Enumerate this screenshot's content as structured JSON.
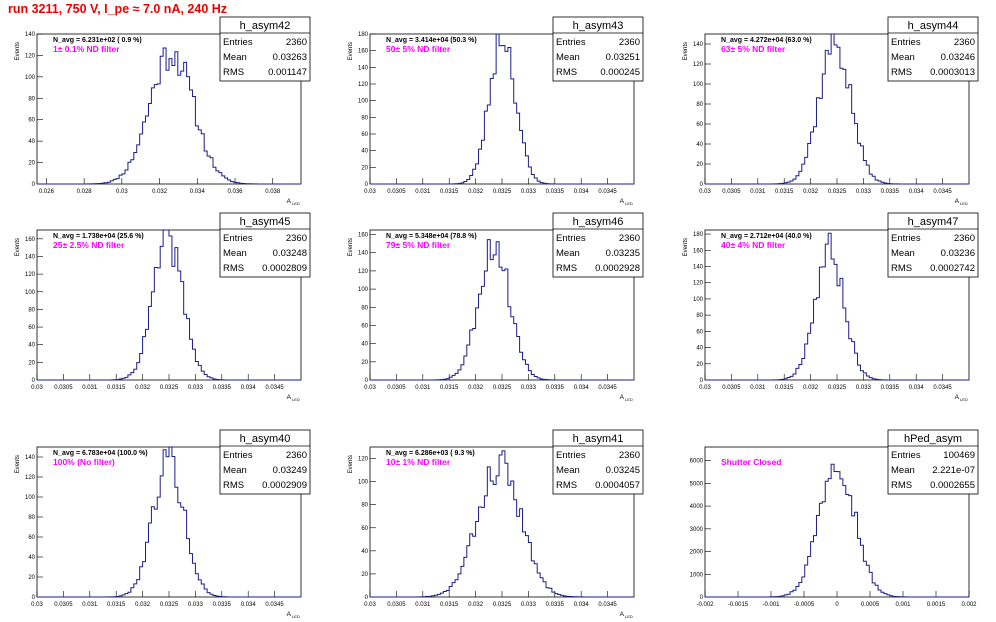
{
  "page": {
    "title": "run 3211,   750 V, I_pe ≈ 7.0 nA, 240 Hz"
  },
  "colors": {
    "histogram_line": "#1c1c8c",
    "annotation": "#ff00ff",
    "title": "#ee0000",
    "axis": "#000000"
  },
  "chart_data": [
    {
      "type": "histogram",
      "name": "h_asym42",
      "ylabel": "Events",
      "xlabel": "A",
      "xlabel_sub": "LED",
      "n_avg": "N_avg = 6.231e+02 ( 0.9 %)",
      "annotation": "1± 0.1% ND filter",
      "stats": {
        "entries": "2360",
        "mean": "0.03263",
        "rms": "0.001147"
      },
      "xlim": [
        0.0255,
        0.0395
      ],
      "ylim": [
        0,
        140
      ],
      "xticks": [
        "0.026",
        "0.028",
        "0.03",
        "0.032",
        "0.034",
        "0.036",
        "0.038"
      ],
      "xtick_values": [
        0.026,
        0.028,
        0.03,
        0.032,
        0.034,
        0.036,
        0.038
      ],
      "yticks": [
        "0",
        "20",
        "40",
        "60",
        "80",
        "100",
        "120",
        "140"
      ],
      "ytick_values": [
        0,
        20,
        40,
        60,
        80,
        100,
        120,
        140
      ],
      "mean_value": 0.03263,
      "rms_value": 0.001147,
      "peak": 124,
      "seed": 11
    },
    {
      "type": "histogram",
      "name": "h_asym43",
      "ylabel": "Events",
      "xlabel": "A",
      "xlabel_sub": "LED",
      "n_avg": "N_avg = 3.414e+04 (50.3 %)",
      "annotation": "50± 5% ND filter",
      "stats": {
        "entries": "2360",
        "mean": "0.03251",
        "rms": "0.000245"
      },
      "xlim": [
        0.03,
        0.035
      ],
      "ylim": [
        0,
        180
      ],
      "xticks": [
        "0.03",
        "0.0305",
        "0.031",
        "0.0315",
        "0.032",
        "0.0325",
        "0.033",
        "0.0335",
        "0.034",
        "0.0345"
      ],
      "xtick_values": [
        0.03,
        0.0305,
        0.031,
        0.0315,
        0.032,
        0.0325,
        0.033,
        0.0335,
        0.034,
        0.0345
      ],
      "yticks": [
        "0",
        "20",
        "40",
        "60",
        "80",
        "100",
        "120",
        "140",
        "160",
        "180"
      ],
      "ytick_values": [
        0,
        20,
        40,
        60,
        80,
        100,
        120,
        140,
        160,
        180
      ],
      "mean_value": 0.03251,
      "rms_value": 0.000245,
      "peak": 180,
      "seed": 23
    },
    {
      "type": "histogram",
      "name": "h_asym44",
      "ylabel": "Events",
      "xlabel": "A",
      "xlabel_sub": "LED",
      "n_avg": "N_avg = 4.272e+04 (63.0 %)",
      "annotation": "63± 5% ND filter",
      "stats": {
        "entries": "2360",
        "mean": "0.03246",
        "rms": "0.0003013"
      },
      "xlim": [
        0.03,
        0.035
      ],
      "ylim": [
        0,
        150
      ],
      "xticks": [
        "0.03",
        "0.0305",
        "0.031",
        "0.0315",
        "0.032",
        "0.0325",
        "0.033",
        "0.0335",
        "0.034",
        "0.0345"
      ],
      "xtick_values": [
        0.03,
        0.0305,
        0.031,
        0.0315,
        0.032,
        0.0325,
        0.033,
        0.0335,
        0.034,
        0.0345
      ],
      "yticks": [
        "0",
        "20",
        "40",
        "60",
        "80",
        "100",
        "120",
        "140"
      ],
      "ytick_values": [
        0,
        20,
        40,
        60,
        80,
        100,
        120,
        140
      ],
      "mean_value": 0.03246,
      "rms_value": 0.0003013,
      "peak": 142,
      "seed": 37
    },
    {
      "type": "histogram",
      "name": "h_asym45",
      "ylabel": "Events",
      "xlabel": "A",
      "xlabel_sub": "LED",
      "n_avg": "N_avg = 1.738e+04 (25.6 %)",
      "annotation": "25± 2.5% ND filter",
      "stats": {
        "entries": "2360",
        "mean": "0.03248",
        "rms": "0.0002809"
      },
      "xlim": [
        0.03,
        0.035
      ],
      "ylim": [
        0,
        170
      ],
      "xticks": [
        "0.03",
        "0.0305",
        "0.031",
        "0.0315",
        "0.032",
        "0.0325",
        "0.033",
        "0.0335",
        "0.034",
        "0.0345"
      ],
      "xtick_values": [
        0.03,
        0.0305,
        0.031,
        0.0315,
        0.032,
        0.0325,
        0.033,
        0.0335,
        0.034,
        0.0345
      ],
      "yticks": [
        "0",
        "20",
        "40",
        "60",
        "80",
        "100",
        "120",
        "140",
        "160"
      ],
      "ytick_values": [
        0,
        20,
        40,
        60,
        80,
        100,
        120,
        140,
        160
      ],
      "mean_value": 0.03248,
      "rms_value": 0.0002809,
      "peak": 160,
      "seed": 41
    },
    {
      "type": "histogram",
      "name": "h_asym46",
      "ylabel": "Events",
      "xlabel": "A",
      "xlabel_sub": "LED",
      "n_avg": "N_avg = 5.348e+04 (78.8 %)",
      "annotation": "79± 5% ND filter",
      "stats": {
        "entries": "2360",
        "mean": "0.03235",
        "rms": "0.0002928"
      },
      "xlim": [
        0.03,
        0.035
      ],
      "ylim": [
        0,
        165
      ],
      "xticks": [
        "0.03",
        "0.0305",
        "0.031",
        "0.0315",
        "0.032",
        "0.0325",
        "0.033",
        "0.0335",
        "0.034",
        "0.0345"
      ],
      "xtick_values": [
        0.03,
        0.0305,
        0.031,
        0.0315,
        0.032,
        0.0325,
        0.033,
        0.0335,
        0.034,
        0.0345
      ],
      "yticks": [
        "0",
        "20",
        "40",
        "60",
        "80",
        "100",
        "120",
        "140",
        "160"
      ],
      "ytick_values": [
        0,
        20,
        40,
        60,
        80,
        100,
        120,
        140,
        160
      ],
      "mean_value": 0.03235,
      "rms_value": 0.0002928,
      "peak": 150,
      "seed": 53
    },
    {
      "type": "histogram",
      "name": "h_asym47",
      "ylabel": "Events",
      "xlabel": "A",
      "xlabel_sub": "LED",
      "n_avg": "N_avg = 2.712e+04 (40.0 %)",
      "annotation": "40± 4% ND filter",
      "stats": {
        "entries": "2360",
        "mean": "0.03236",
        "rms": "0.0002742"
      },
      "xlim": [
        0.03,
        0.035
      ],
      "ylim": [
        0,
        185
      ],
      "xticks": [
        "0.03",
        "0.0305",
        "0.031",
        "0.0315",
        "0.032",
        "0.0325",
        "0.033",
        "0.0335",
        "0.034",
        "0.0345"
      ],
      "xtick_values": [
        0.03,
        0.0305,
        0.031,
        0.0315,
        0.032,
        0.0325,
        0.033,
        0.0335,
        0.034,
        0.0345
      ],
      "yticks": [
        "0",
        "20",
        "40",
        "60",
        "80",
        "100",
        "120",
        "140",
        "160",
        "180"
      ],
      "ytick_values": [
        0,
        20,
        40,
        60,
        80,
        100,
        120,
        140,
        160,
        180
      ],
      "mean_value": 0.03236,
      "rms_value": 0.0002742,
      "peak": 160,
      "seed": 67
    },
    {
      "type": "histogram",
      "name": "h_asym40",
      "ylabel": "Events",
      "xlabel": "A",
      "xlabel_sub": "LED",
      "n_avg": "N_avg = 6.783e+04 (100.0 %)",
      "annotation": "100% (No filter)",
      "stats": {
        "entries": "2360",
        "mean": "0.03249",
        "rms": "0.0002909"
      },
      "xlim": [
        0.03,
        0.035
      ],
      "ylim": [
        0,
        150
      ],
      "xticks": [
        "0.03",
        "0.0305",
        "0.031",
        "0.0315",
        "0.032",
        "0.0325",
        "0.033",
        "0.0335",
        "0.034",
        "0.0345"
      ],
      "xtick_values": [
        0.03,
        0.0305,
        0.031,
        0.0315,
        0.032,
        0.0325,
        0.033,
        0.0335,
        0.034,
        0.0345
      ],
      "yticks": [
        "0",
        "20",
        "40",
        "60",
        "80",
        "100",
        "120",
        "140"
      ],
      "ytick_values": [
        0,
        20,
        40,
        60,
        80,
        100,
        120,
        140
      ],
      "mean_value": 0.03249,
      "rms_value": 0.0002909,
      "peak": 140,
      "seed": 79
    },
    {
      "type": "histogram",
      "name": "h_asym41",
      "ylabel": "Events",
      "xlabel": "A",
      "xlabel_sub": "LED",
      "n_avg": "N_avg = 6.286e+03 ( 9.3 %)",
      "annotation": "10± 1% ND filter",
      "stats": {
        "entries": "2360",
        "mean": "0.03245",
        "rms": "0.0004057"
      },
      "xlim": [
        0.03,
        0.035
      ],
      "ylim": [
        0,
        130
      ],
      "xticks": [
        "0.03",
        "0.0305",
        "0.031",
        "0.0315",
        "0.032",
        "0.0325",
        "0.033",
        "0.0335",
        "0.034",
        "0.0345"
      ],
      "xtick_values": [
        0.03,
        0.0305,
        0.031,
        0.0315,
        0.032,
        0.0325,
        0.033,
        0.0335,
        0.034,
        0.0345
      ],
      "yticks": [
        "0",
        "20",
        "40",
        "60",
        "80",
        "100",
        "120"
      ],
      "ytick_values": [
        0,
        20,
        40,
        60,
        80,
        100,
        120
      ],
      "mean_value": 0.03245,
      "rms_value": 0.0004057,
      "peak": 115,
      "seed": 83
    },
    {
      "type": "histogram",
      "name": "hPed_asym",
      "ylabel": "",
      "xlabel": "",
      "xlabel_sub": "",
      "n_avg": "",
      "annotation": "Shutter Closed",
      "stats": {
        "entries": "100469",
        "mean": "2.221e-07",
        "rms": "0.0002655"
      },
      "xlim": [
        -0.002,
        0.002
      ],
      "ylim": [
        0,
        6600
      ],
      "xticks": [
        "-0.002",
        "-0.0015",
        "-0.001",
        "-0.0005",
        "0",
        "0.0005",
        "0.001",
        "0.0015",
        "0.002"
      ],
      "xtick_values": [
        -0.002,
        -0.0015,
        -0.001,
        -0.0005,
        0,
        0.0005,
        0.001,
        0.0015,
        0.002
      ],
      "yticks": [
        "0",
        "1000",
        "2000",
        "3000",
        "4000",
        "5000",
        "6000"
      ],
      "ytick_values": [
        0,
        1000,
        2000,
        3000,
        4000,
        5000,
        6000
      ],
      "mean_value": 0.0,
      "rms_value": 0.0002655,
      "peak": 6200,
      "seed": 97
    }
  ]
}
